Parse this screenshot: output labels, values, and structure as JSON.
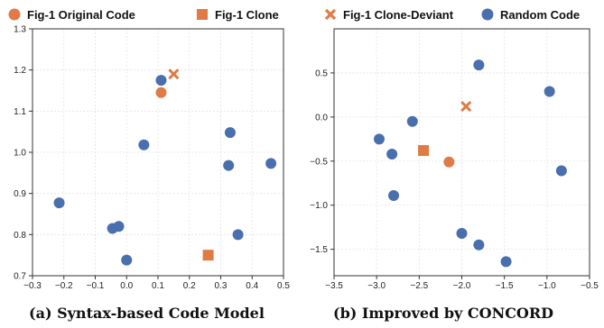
{
  "legend": [
    {
      "label": "Fig-1 Original Code",
      "marker": "circle",
      "color": "#E07B45"
    },
    {
      "label": "Fig-1 Clone",
      "marker": "square",
      "color": "#E07B45"
    },
    {
      "label": "Fig-1 Clone-Deviant",
      "marker": "x",
      "color": "#E07B45"
    },
    {
      "label": "Random Code",
      "marker": "circle",
      "color": "#4A6FAE"
    }
  ],
  "colors": {
    "orange": "#E07B45",
    "blue": "#4A6FAE"
  },
  "chart_data": [
    {
      "type": "scatter",
      "caption": "(a) Syntax-based Code Model",
      "xlim": [
        -0.3,
        0.5
      ],
      "ylim": [
        0.7,
        1.3
      ],
      "xticks": [
        "−0.3",
        "−0.2",
        "−0.1",
        "0.0",
        "0.1",
        "0.2",
        "0.3",
        "0.4",
        "0.5"
      ],
      "yticks": [
        "0.7",
        "0.8",
        "0.9",
        "1.0",
        "1.1",
        "1.2",
        "1.3"
      ],
      "grid": true,
      "series": [
        {
          "name": "Fig-1 Original Code",
          "marker": "circle",
          "points": [
            [
              0.11,
              1.145
            ]
          ]
        },
        {
          "name": "Fig-1 Clone",
          "marker": "square",
          "points": [
            [
              0.26,
              0.75
            ]
          ]
        },
        {
          "name": "Fig-1 Clone-Deviant",
          "marker": "x",
          "points": [
            [
              0.15,
              1.19
            ]
          ]
        },
        {
          "name": "Random Code",
          "marker": "circle",
          "points": [
            [
              0.11,
              1.175
            ],
            [
              0.055,
              1.018
            ],
            [
              0.33,
              1.048
            ],
            [
              0.325,
              0.968
            ],
            [
              0.46,
              0.973
            ],
            [
              -0.215,
              0.877
            ],
            [
              -0.045,
              0.815
            ],
            [
              -0.025,
              0.82
            ],
            [
              0.0,
              0.738
            ],
            [
              0.355,
              0.8
            ]
          ]
        }
      ]
    },
    {
      "type": "scatter",
      "caption": "(b) Improved by CONCORD",
      "xlim": [
        -3.5,
        -0.5
      ],
      "ylim": [
        -1.8,
        1.0
      ],
      "xticks": [
        "−3.5",
        "−3.0",
        "−2.5",
        "−2.0",
        "−1.5",
        "−1.0",
        "−0.5"
      ],
      "yticks": [
        "−1.5",
        "−1.0",
        "−0.5",
        "0.0",
        "0.5"
      ],
      "grid": true,
      "series": [
        {
          "name": "Fig-1 Original Code",
          "marker": "circle",
          "points": [
            [
              -2.15,
              -0.51
            ]
          ]
        },
        {
          "name": "Fig-1 Clone",
          "marker": "square",
          "points": [
            [
              -2.45,
              -0.38
            ]
          ]
        },
        {
          "name": "Fig-1 Clone-Deviant",
          "marker": "x",
          "points": [
            [
              -1.95,
              0.12
            ]
          ]
        },
        {
          "name": "Random Code",
          "marker": "circle",
          "points": [
            [
              -1.8,
              0.59
            ],
            [
              -0.97,
              0.29
            ],
            [
              -2.58,
              -0.05
            ],
            [
              -2.97,
              -0.25
            ],
            [
              -2.82,
              -0.42
            ],
            [
              -0.83,
              -0.61
            ],
            [
              -2.8,
              -0.89
            ],
            [
              -2.0,
              -1.32
            ],
            [
              -1.8,
              -1.45
            ],
            [
              -1.48,
              -1.64
            ]
          ]
        }
      ]
    }
  ]
}
